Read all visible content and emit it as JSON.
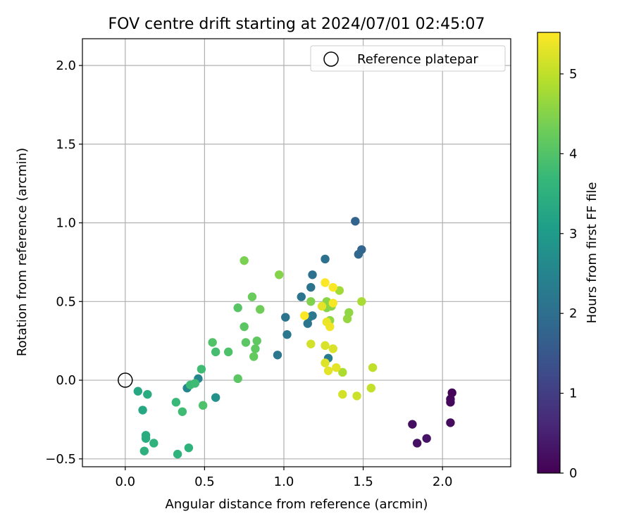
{
  "chart_data": {
    "type": "scatter",
    "title": "FOV centre drift starting at 2024/07/01 02:45:07",
    "xlabel": "Angular distance from reference (arcmin)",
    "ylabel": "Rotation from reference (arcmin)",
    "xlim": [
      -0.27,
      2.43
    ],
    "ylim": [
      -0.55,
      2.17
    ],
    "x_ticks": [
      0.0,
      0.5,
      1.0,
      1.5,
      2.0
    ],
    "x_tick_labels": [
      "0.0",
      "0.5",
      "1.0",
      "1.5",
      "2.0"
    ],
    "y_ticks": [
      -0.5,
      0.0,
      0.5,
      1.0,
      1.5,
      2.0
    ],
    "y_tick_labels": [
      "−0.5",
      "0.0",
      "0.5",
      "1.0",
      "1.5",
      "2.0"
    ],
    "grid": true,
    "legend": {
      "placement": "top-right",
      "entries": [
        "Reference platepar"
      ]
    },
    "reference": {
      "x": 0.0,
      "y": 0.0,
      "marker": "open-circle",
      "label": "Reference platepar"
    },
    "colorbar": {
      "label": "Hours from first FF file",
      "colormap": "viridis",
      "range": [
        0,
        5.52
      ],
      "ticks": [
        0,
        1,
        2,
        3,
        4,
        5
      ],
      "tick_labels": [
        "0",
        "1",
        "2",
        "3",
        "4",
        "5"
      ]
    },
    "points": [
      {
        "x": 2.06,
        "y": -0.08,
        "hours": 0.05
      },
      {
        "x": 2.05,
        "y": -0.12,
        "hours": 0.1
      },
      {
        "x": 2.05,
        "y": -0.14,
        "hours": 0.12
      },
      {
        "x": 2.05,
        "y": -0.27,
        "hours": 0.15
      },
      {
        "x": 1.81,
        "y": -0.28,
        "hours": 0.2
      },
      {
        "x": 1.84,
        "y": -0.4,
        "hours": 0.25
      },
      {
        "x": 1.9,
        "y": -0.37,
        "hours": 0.3
      },
      {
        "x": 1.45,
        "y": 1.01,
        "hours": 1.75
      },
      {
        "x": 1.49,
        "y": 0.83,
        "hours": 1.8
      },
      {
        "x": 1.47,
        "y": 0.8,
        "hours": 1.85
      },
      {
        "x": 1.26,
        "y": 0.77,
        "hours": 2.05
      },
      {
        "x": 1.18,
        "y": 0.67,
        "hours": 2.05
      },
      {
        "x": 1.17,
        "y": 0.59,
        "hours": 2.1
      },
      {
        "x": 1.11,
        "y": 0.53,
        "hours": 2.15
      },
      {
        "x": 1.01,
        "y": 0.4,
        "hours": 2.1
      },
      {
        "x": 1.18,
        "y": 0.41,
        "hours": 2.2
      },
      {
        "x": 1.16,
        "y": 0.4,
        "hours": 2.25
      },
      {
        "x": 1.15,
        "y": 0.36,
        "hours": 2.15
      },
      {
        "x": 1.02,
        "y": 0.29,
        "hours": 2.2
      },
      {
        "x": 0.96,
        "y": 0.16,
        "hours": 2.2
      },
      {
        "x": 1.28,
        "y": 0.14,
        "hours": 2.3
      },
      {
        "x": 0.46,
        "y": 0.01,
        "hours": 2.55
      },
      {
        "x": 0.39,
        "y": -0.05,
        "hours": 2.55
      },
      {
        "x": 0.57,
        "y": -0.11,
        "hours": 2.8
      },
      {
        "x": 0.08,
        "y": -0.07,
        "hours": 3.3
      },
      {
        "x": 0.11,
        "y": -0.19,
        "hours": 3.3
      },
      {
        "x": 0.14,
        "y": -0.09,
        "hours": 3.4
      },
      {
        "x": 0.13,
        "y": -0.35,
        "hours": 3.4
      },
      {
        "x": 0.13,
        "y": -0.37,
        "hours": 3.4
      },
      {
        "x": 0.18,
        "y": -0.4,
        "hours": 3.55
      },
      {
        "x": 0.12,
        "y": -0.45,
        "hours": 3.5
      },
      {
        "x": 0.4,
        "y": -0.43,
        "hours": 3.55
      },
      {
        "x": 0.33,
        "y": -0.47,
        "hours": 3.55
      },
      {
        "x": 0.32,
        "y": -0.14,
        "hours": 3.7
      },
      {
        "x": 0.41,
        "y": -0.03,
        "hours": 3.75
      },
      {
        "x": 0.44,
        "y": -0.02,
        "hours": 3.8
      },
      {
        "x": 0.48,
        "y": 0.07,
        "hours": 3.8
      },
      {
        "x": 0.36,
        "y": -0.2,
        "hours": 3.8
      },
      {
        "x": 0.57,
        "y": 0.18,
        "hours": 3.85
      },
      {
        "x": 0.65,
        "y": 0.18,
        "hours": 3.95
      },
      {
        "x": 0.49,
        "y": -0.16,
        "hours": 3.95
      },
      {
        "x": 0.55,
        "y": 0.24,
        "hours": 4.0
      },
      {
        "x": 0.71,
        "y": 0.01,
        "hours": 4.1
      },
      {
        "x": 0.71,
        "y": 0.46,
        "hours": 4.05
      },
      {
        "x": 0.75,
        "y": 0.34,
        "hours": 4.1
      },
      {
        "x": 0.76,
        "y": 0.24,
        "hours": 4.1
      },
      {
        "x": 0.82,
        "y": 0.2,
        "hours": 4.15
      },
      {
        "x": 0.83,
        "y": 0.25,
        "hours": 4.15
      },
      {
        "x": 0.81,
        "y": 0.15,
        "hours": 4.2
      },
      {
        "x": 0.8,
        "y": 0.53,
        "hours": 4.25
      },
      {
        "x": 0.85,
        "y": 0.45,
        "hours": 4.3
      },
      {
        "x": 0.75,
        "y": 0.76,
        "hours": 4.4
      },
      {
        "x": 0.97,
        "y": 0.67,
        "hours": 4.5
      },
      {
        "x": 1.17,
        "y": 0.5,
        "hours": 4.45
      },
      {
        "x": 1.27,
        "y": 0.5,
        "hours": 4.55
      },
      {
        "x": 1.27,
        "y": 0.46,
        "hours": 4.5
      },
      {
        "x": 1.3,
        "y": 0.47,
        "hours": 4.55
      },
      {
        "x": 1.29,
        "y": 0.38,
        "hours": 4.6
      },
      {
        "x": 1.4,
        "y": 0.39,
        "hours": 4.65
      },
      {
        "x": 1.41,
        "y": 0.43,
        "hours": 4.6
      },
      {
        "x": 1.35,
        "y": 0.57,
        "hours": 4.75
      },
      {
        "x": 1.49,
        "y": 0.5,
        "hours": 4.8
      },
      {
        "x": 1.37,
        "y": 0.05,
        "hours": 4.85
      },
      {
        "x": 1.56,
        "y": 0.08,
        "hours": 5.0
      },
      {
        "x": 1.55,
        "y": -0.05,
        "hours": 5.05
      },
      {
        "x": 1.46,
        "y": -0.1,
        "hours": 5.1
      },
      {
        "x": 1.37,
        "y": -0.09,
        "hours": 5.15
      },
      {
        "x": 1.17,
        "y": 0.23,
        "hours": 5.15
      },
      {
        "x": 1.26,
        "y": 0.22,
        "hours": 5.2
      },
      {
        "x": 1.31,
        "y": 0.2,
        "hours": 5.2
      },
      {
        "x": 1.26,
        "y": 0.11,
        "hours": 5.25
      },
      {
        "x": 1.28,
        "y": 0.06,
        "hours": 5.3
      },
      {
        "x": 1.33,
        "y": 0.08,
        "hours": 5.3
      },
      {
        "x": 1.24,
        "y": 0.47,
        "hours": 5.3
      },
      {
        "x": 1.27,
        "y": 0.37,
        "hours": 5.35
      },
      {
        "x": 1.29,
        "y": 0.34,
        "hours": 5.4
      },
      {
        "x": 1.31,
        "y": 0.49,
        "hours": 5.45
      },
      {
        "x": 1.31,
        "y": 0.59,
        "hours": 5.5
      },
      {
        "x": 1.26,
        "y": 0.62,
        "hours": 5.5
      },
      {
        "x": 1.13,
        "y": 0.41,
        "hours": 5.5
      }
    ]
  }
}
